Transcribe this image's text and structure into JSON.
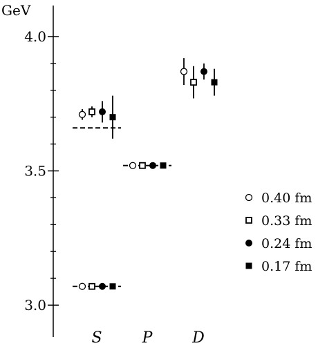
{
  "chart_data": {
    "type": "scatter",
    "y_unit_label": "GeV",
    "categories": [
      "S",
      "P",
      "D"
    ],
    "ylim": [
      2.9,
      4.12
    ],
    "y_ticks": [
      3.0,
      3.5,
      4.0
    ],
    "y_tick_labels": [
      "3.0",
      "3.5",
      "4.0"
    ],
    "y_minor_ticks": [
      3.1,
      3.2,
      3.3,
      3.4,
      3.6,
      3.7,
      3.8,
      3.9
    ],
    "legend_position": "right",
    "series": [
      {
        "name": "0.40 fm",
        "marker": "open-circle"
      },
      {
        "name": "0.33 fm",
        "marker": "open-square"
      },
      {
        "name": "0.24 fm",
        "marker": "filled-circle"
      },
      {
        "name": "0.17 fm",
        "marker": "filled-square"
      }
    ],
    "points": [
      {
        "category": "S",
        "series": 0,
        "y": 3.07,
        "err": 0.0
      },
      {
        "category": "S",
        "series": 1,
        "y": 3.07,
        "err": 0.0
      },
      {
        "category": "S",
        "series": 2,
        "y": 3.07,
        "err": 0.0
      },
      {
        "category": "S",
        "series": 3,
        "y": 3.07,
        "err": 0.0
      },
      {
        "category": "S",
        "series": 0,
        "y": 3.71,
        "err": 0.02
      },
      {
        "category": "S",
        "series": 1,
        "y": 3.72,
        "err": 0.02
      },
      {
        "category": "S",
        "series": 2,
        "y": 3.72,
        "err": 0.04
      },
      {
        "category": "S",
        "series": 3,
        "y": 3.7,
        "err": 0.08
      },
      {
        "category": "P",
        "series": 0,
        "y": 3.52,
        "err": 0.0
      },
      {
        "category": "P",
        "series": 1,
        "y": 3.52,
        "err": 0.0
      },
      {
        "category": "P",
        "series": 2,
        "y": 3.52,
        "err": 0.0
      },
      {
        "category": "P",
        "series": 3,
        "y": 3.52,
        "err": 0.0
      },
      {
        "category": "D",
        "series": 0,
        "y": 3.87,
        "err": 0.05
      },
      {
        "category": "D",
        "series": 1,
        "y": 3.83,
        "err": 0.06
      },
      {
        "category": "D",
        "series": 2,
        "y": 3.87,
        "err": 0.03
      },
      {
        "category": "D",
        "series": 3,
        "y": 3.83,
        "err": 0.05
      }
    ],
    "reference_lines": [
      {
        "category": "S",
        "y": 3.07,
        "style": "dashed"
      },
      {
        "category": "S",
        "y": 3.66,
        "style": "dashed"
      },
      {
        "category": "P",
        "y": 3.52,
        "style": "dashed"
      }
    ]
  }
}
